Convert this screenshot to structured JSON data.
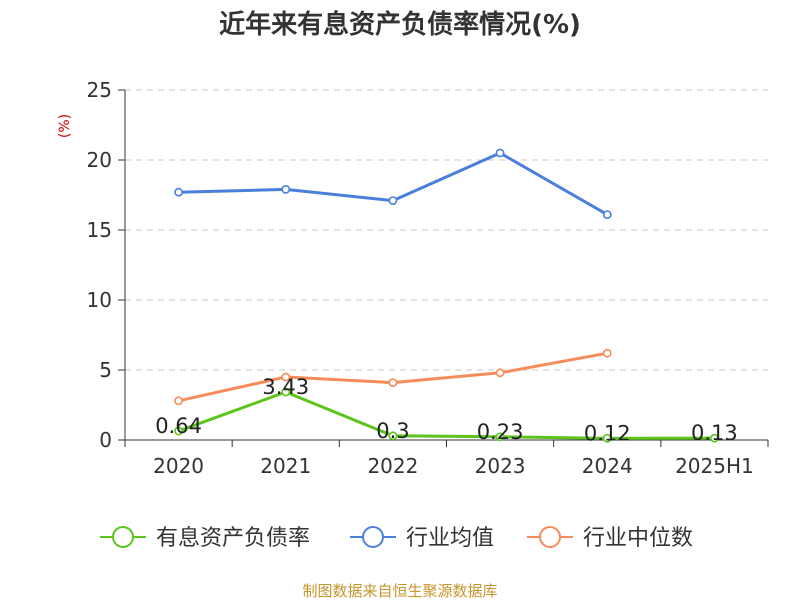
{
  "chart_data": {
    "type": "line",
    "title": "近年来有息资产负债率情况(%)",
    "ylabel": "(%)",
    "xlabel": "",
    "categories": [
      "2020",
      "2021",
      "2022",
      "2023",
      "2024",
      "2025H1"
    ],
    "ylim": [
      0,
      25
    ],
    "yticks": [
      0,
      5,
      10,
      15,
      20,
      25
    ],
    "grid": true,
    "legend_position": "bottom",
    "series": [
      {
        "name": "有息资产负债率",
        "color": "#5cc41a",
        "values": [
          0.64,
          3.43,
          0.3,
          0.23,
          0.12,
          0.13
        ],
        "labels": [
          "0.64",
          "3.43",
          "0.3",
          "0.23",
          "0.12",
          "0.13"
        ],
        "show_labels": true
      },
      {
        "name": "行业均值",
        "color": "#4a7fdc",
        "values": [
          17.7,
          17.9,
          17.1,
          20.5,
          16.1,
          null
        ],
        "show_labels": false
      },
      {
        "name": "行业中位数",
        "color": "#f58c5a",
        "values": [
          2.8,
          4.5,
          4.1,
          4.8,
          6.2,
          null
        ],
        "show_labels": false
      }
    ]
  },
  "footer": {
    "source": "制图数据来自恒生聚源数据库"
  }
}
